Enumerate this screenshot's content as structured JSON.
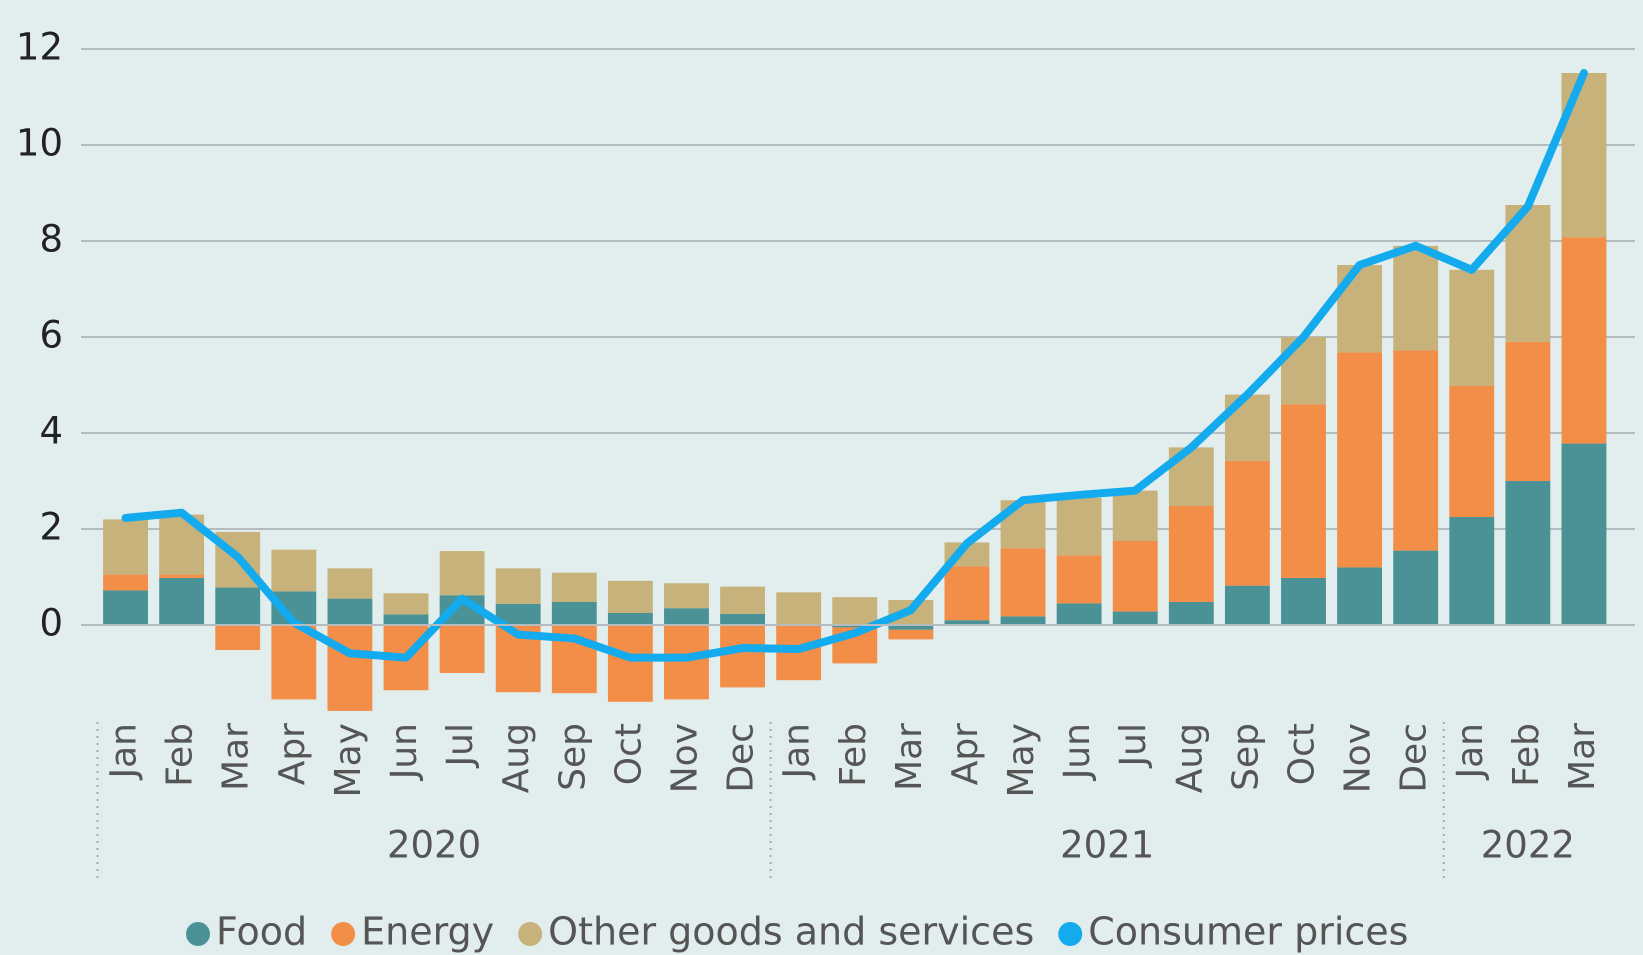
{
  "chart_data": {
    "type": "bar",
    "stacked": true,
    "categories": [
      "Jan",
      "Feb",
      "Mar",
      "Apr",
      "May",
      "Jun",
      "Jul",
      "Aug",
      "Sep",
      "Oct",
      "Nov",
      "Dec",
      "Jan",
      "Feb",
      "Mar",
      "Apr",
      "May",
      "Jun",
      "Jul",
      "Aug",
      "Sep",
      "Oct",
      "Nov",
      "Dec",
      "Jan",
      "Feb",
      "Mar"
    ],
    "year_groups": [
      {
        "label": "2020",
        "count": 12
      },
      {
        "label": "2021",
        "count": 12
      },
      {
        "label": "2022",
        "count": 3
      }
    ],
    "series": [
      {
        "name": "Food",
        "type": "bar",
        "color": "#4a9296",
        "values": [
          0.72,
          0.98,
          0.78,
          0.7,
          0.55,
          0.22,
          0.62,
          0.44,
          0.48,
          0.25,
          0.35,
          0.23,
          0.02,
          -0.05,
          -0.1,
          0.1,
          0.18,
          0.45,
          0.28,
          0.48,
          0.82,
          0.98,
          1.2,
          1.55,
          2.25,
          3.0,
          3.78
        ]
      },
      {
        "name": "Energy",
        "type": "bar",
        "color": "#f28e48",
        "values": [
          0.33,
          0.07,
          -0.52,
          -1.55,
          -1.79,
          -1.36,
          -1.0,
          -1.4,
          -1.42,
          -1.6,
          -1.55,
          -1.3,
          -1.15,
          -0.75,
          -0.2,
          1.12,
          1.42,
          1.0,
          1.47,
          2.0,
          2.6,
          3.62,
          4.48,
          4.17,
          2.73,
          2.9,
          4.3
        ]
      },
      {
        "name": "Other goods and services",
        "type": "bar",
        "color": "#c6b27a",
        "values": [
          1.15,
          1.25,
          1.16,
          0.87,
          0.63,
          0.44,
          0.92,
          0.74,
          0.61,
          0.67,
          0.52,
          0.57,
          0.66,
          0.58,
          0.52,
          0.5,
          1.0,
          1.2,
          1.05,
          1.22,
          1.38,
          1.4,
          1.82,
          2.18,
          2.42,
          2.85,
          3.42
        ]
      },
      {
        "name": "Consumer prices",
        "type": "line",
        "color": "#14aaee",
        "values": [
          2.23,
          2.34,
          1.42,
          0.05,
          -0.59,
          -0.68,
          0.55,
          -0.2,
          -0.28,
          -0.68,
          -0.68,
          -0.48,
          -0.5,
          -0.17,
          0.31,
          1.7,
          2.6,
          2.71,
          2.8,
          3.7,
          4.8,
          6.0,
          7.5,
          7.9,
          7.4,
          8.72,
          11.5
        ]
      }
    ],
    "ylim": [
      -2,
      12
    ],
    "yticks": [
      0,
      2,
      4,
      6,
      8,
      10,
      12
    ],
    "grid": true
  }
}
